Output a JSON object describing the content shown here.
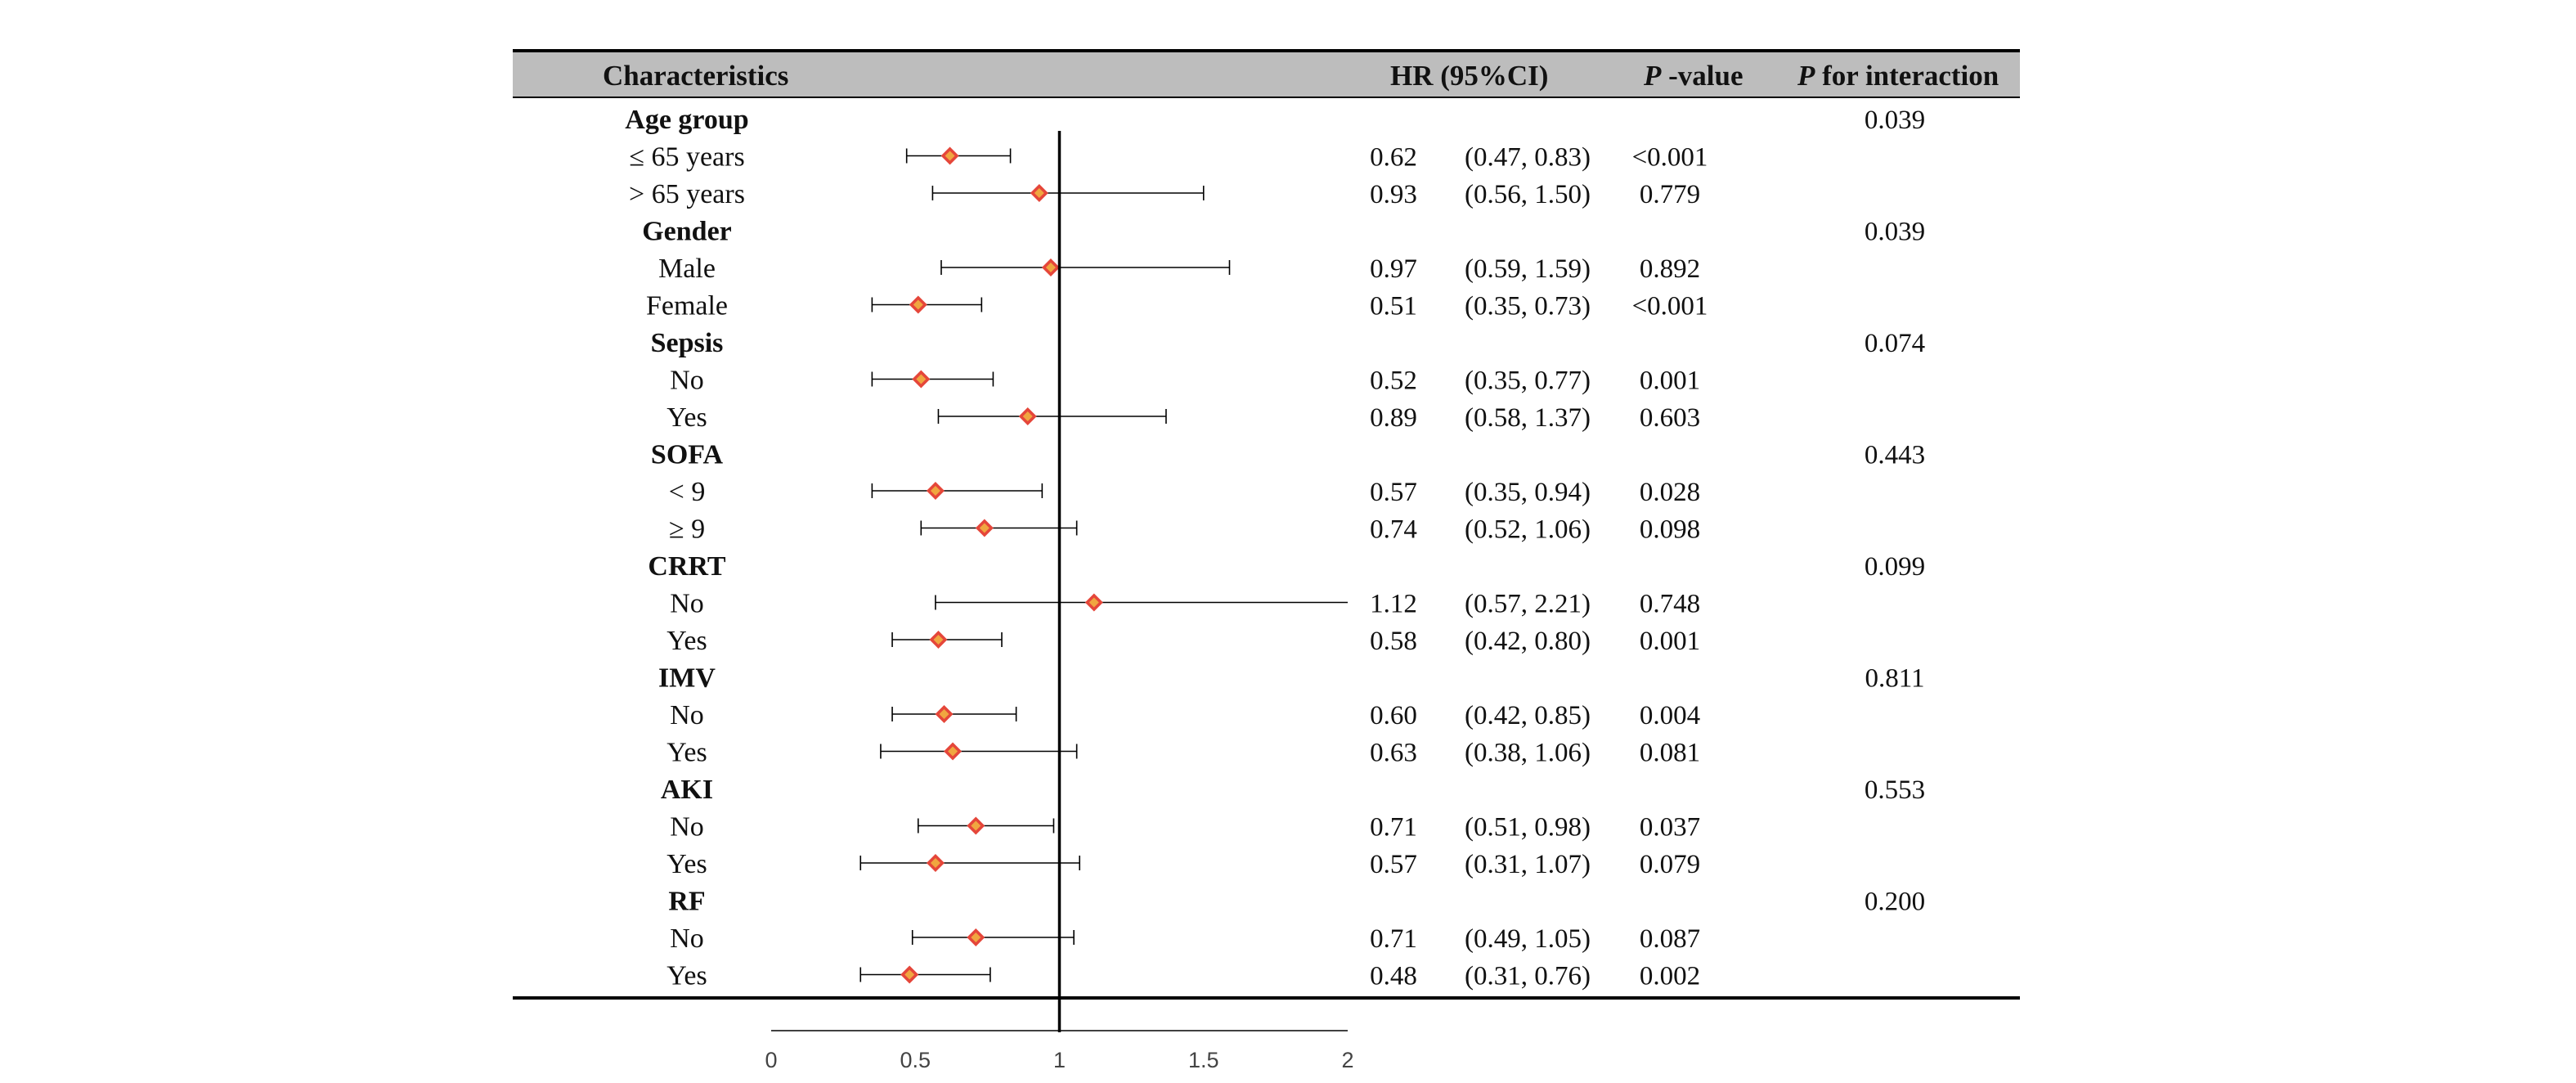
{
  "header": {
    "characteristics": "Characteristics",
    "hr_ci": "HR (95%CI)",
    "p_value_italic": "P",
    "p_value_rest": " -value",
    "p_interaction_italic": "P",
    "p_interaction_rest": " for interaction"
  },
  "chart_data": {
    "type": "forest",
    "xlim": [
      0,
      2
    ],
    "reference_line": 1,
    "x_ticks": [
      "0",
      "0.5",
      "1",
      "1.5",
      "2"
    ],
    "colors": {
      "marker_outer": "#e5463a",
      "marker_inner": "#f0a640",
      "line": "#000000",
      "header_bg": "#bdbdbd"
    },
    "rows": [
      {
        "kind": "group",
        "label": "Age group",
        "p_interaction": "0.039"
      },
      {
        "kind": "item",
        "label": "≤ 65 years",
        "hr": 0.62,
        "lo": 0.47,
        "hi": 0.83,
        "hr_text": "0.62",
        "ci_text": "(0.47, 0.83)",
        "p": "<0.001"
      },
      {
        "kind": "item",
        "label": "> 65 years",
        "hr": 0.93,
        "lo": 0.56,
        "hi": 1.5,
        "hr_text": "0.93",
        "ci_text": "(0.56, 1.50)",
        "p": "0.779"
      },
      {
        "kind": "group",
        "label": "Gender",
        "p_interaction": "0.039"
      },
      {
        "kind": "item",
        "label": "Male",
        "hr": 0.97,
        "lo": 0.59,
        "hi": 1.59,
        "hr_text": "0.97",
        "ci_text": "(0.59, 1.59)",
        "p": "0.892"
      },
      {
        "kind": "item",
        "label": "Female",
        "hr": 0.51,
        "lo": 0.35,
        "hi": 0.73,
        "hr_text": "0.51",
        "ci_text": "(0.35, 0.73)",
        "p": "<0.001"
      },
      {
        "kind": "group",
        "label": "Sepsis",
        "p_interaction": "0.074"
      },
      {
        "kind": "item",
        "label": "No",
        "hr": 0.52,
        "lo": 0.35,
        "hi": 0.77,
        "hr_text": "0.52",
        "ci_text": "(0.35, 0.77)",
        "p": "0.001"
      },
      {
        "kind": "item",
        "label": "Yes",
        "hr": 0.89,
        "lo": 0.58,
        "hi": 1.37,
        "hr_text": "0.89",
        "ci_text": "(0.58, 1.37)",
        "p": "0.603"
      },
      {
        "kind": "group",
        "label": "SOFA",
        "p_interaction": "0.443"
      },
      {
        "kind": "item",
        "label": "< 9",
        "hr": 0.57,
        "lo": 0.35,
        "hi": 0.94,
        "hr_text": "0.57",
        "ci_text": "(0.35, 0.94)",
        "p": "0.028"
      },
      {
        "kind": "item",
        "label": "≥ 9",
        "hr": 0.74,
        "lo": 0.52,
        "hi": 1.06,
        "hr_text": "0.74",
        "ci_text": "(0.52, 1.06)",
        "p": "0.098"
      },
      {
        "kind": "group",
        "label": "CRRT",
        "p_interaction": "0.099"
      },
      {
        "kind": "item",
        "label": "No",
        "hr": 1.12,
        "lo": 0.57,
        "hi": 2.21,
        "hr_text": "1.12",
        "ci_text": "(0.57, 2.21)",
        "p": "0.748"
      },
      {
        "kind": "item",
        "label": "Yes",
        "hr": 0.58,
        "lo": 0.42,
        "hi": 0.8,
        "hr_text": "0.58",
        "ci_text": "(0.42, 0.80)",
        "p": "0.001"
      },
      {
        "kind": "group",
        "label": "IMV",
        "p_interaction": "0.811"
      },
      {
        "kind": "item",
        "label": "No",
        "hr": 0.6,
        "lo": 0.42,
        "hi": 0.85,
        "hr_text": "0.60",
        "ci_text": "(0.42, 0.85)",
        "p": "0.004"
      },
      {
        "kind": "item",
        "label": "Yes",
        "hr": 0.63,
        "lo": 0.38,
        "hi": 1.06,
        "hr_text": "0.63",
        "ci_text": "(0.38, 1.06)",
        "p": "0.081"
      },
      {
        "kind": "group",
        "label": "AKI",
        "p_interaction": "0.553"
      },
      {
        "kind": "item",
        "label": "No",
        "hr": 0.71,
        "lo": 0.51,
        "hi": 0.98,
        "hr_text": "0.71",
        "ci_text": "(0.51, 0.98)",
        "p": "0.037"
      },
      {
        "kind": "item",
        "label": "Yes",
        "hr": 0.57,
        "lo": 0.31,
        "hi": 1.07,
        "hr_text": "0.57",
        "ci_text": "(0.31, 1.07)",
        "p": "0.079"
      },
      {
        "kind": "group",
        "label": "RF",
        "p_interaction": "0.200"
      },
      {
        "kind": "item",
        "label": "No",
        "hr": 0.71,
        "lo": 0.49,
        "hi": 1.05,
        "hr_text": "0.71",
        "ci_text": "(0.49, 1.05)",
        "p": "0.087"
      },
      {
        "kind": "item",
        "label": "Yes",
        "hr": 0.48,
        "lo": 0.31,
        "hi": 0.76,
        "hr_text": "0.48",
        "ci_text": "(0.31, 0.76)",
        "p": "0.002"
      }
    ]
  }
}
